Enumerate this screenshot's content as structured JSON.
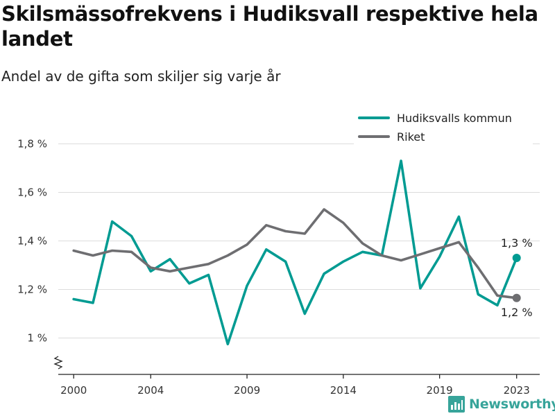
{
  "title": "Skilsmässofrekvens i Hudiksvall respektive hela landet",
  "subtitle": "Andel av de gifta som skiljer sig varje år",
  "brand": {
    "name": "Newsworthy"
  },
  "colors": {
    "hudiksvall": "#009b92",
    "riket": "#6e6e71",
    "grid": "#dcdcdc",
    "axis": "#222222"
  },
  "chart_data": {
    "type": "line",
    "x": [
      2000,
      2001,
      2002,
      2003,
      2004,
      2005,
      2006,
      2007,
      2008,
      2009,
      2010,
      2011,
      2012,
      2013,
      2014,
      2015,
      2016,
      2017,
      2018,
      2019,
      2020,
      2021,
      2022,
      2023
    ],
    "xticks": [
      2000,
      2004,
      2009,
      2014,
      2019,
      2023
    ],
    "xtick_labels": [
      "2000",
      "2004",
      "2009",
      "2014",
      "2019",
      "2023"
    ],
    "ylim": [
      0.85,
      1.85
    ],
    "yticks": [
      1.0,
      1.2,
      1.4,
      1.6,
      1.8
    ],
    "ytick_labels": [
      "1 %",
      "1,2 %",
      "1,4 %",
      "1,6 %",
      "1,8 %"
    ],
    "axis_break": true,
    "legend_position": "top-right",
    "grid": "horizontal",
    "series": [
      {
        "name": "Hudiksvalls kommun",
        "color": "#009b92",
        "values": [
          1.16,
          1.145,
          1.48,
          1.42,
          1.275,
          1.325,
          1.225,
          1.26,
          0.975,
          1.215,
          1.365,
          1.315,
          1.1,
          1.265,
          1.315,
          1.355,
          1.34,
          1.73,
          1.205,
          1.335,
          1.5,
          1.18,
          1.135,
          1.33
        ],
        "end_label": "1,3 %"
      },
      {
        "name": "Riket",
        "color": "#6e6e71",
        "values": [
          1.36,
          1.34,
          1.36,
          1.355,
          1.29,
          1.275,
          1.29,
          1.305,
          1.34,
          1.385,
          1.465,
          1.44,
          1.43,
          1.53,
          1.475,
          1.39,
          1.34,
          1.32,
          1.345,
          1.37,
          1.395,
          1.29,
          1.175,
          1.165
        ],
        "end_label": "1,2 %"
      }
    ]
  }
}
